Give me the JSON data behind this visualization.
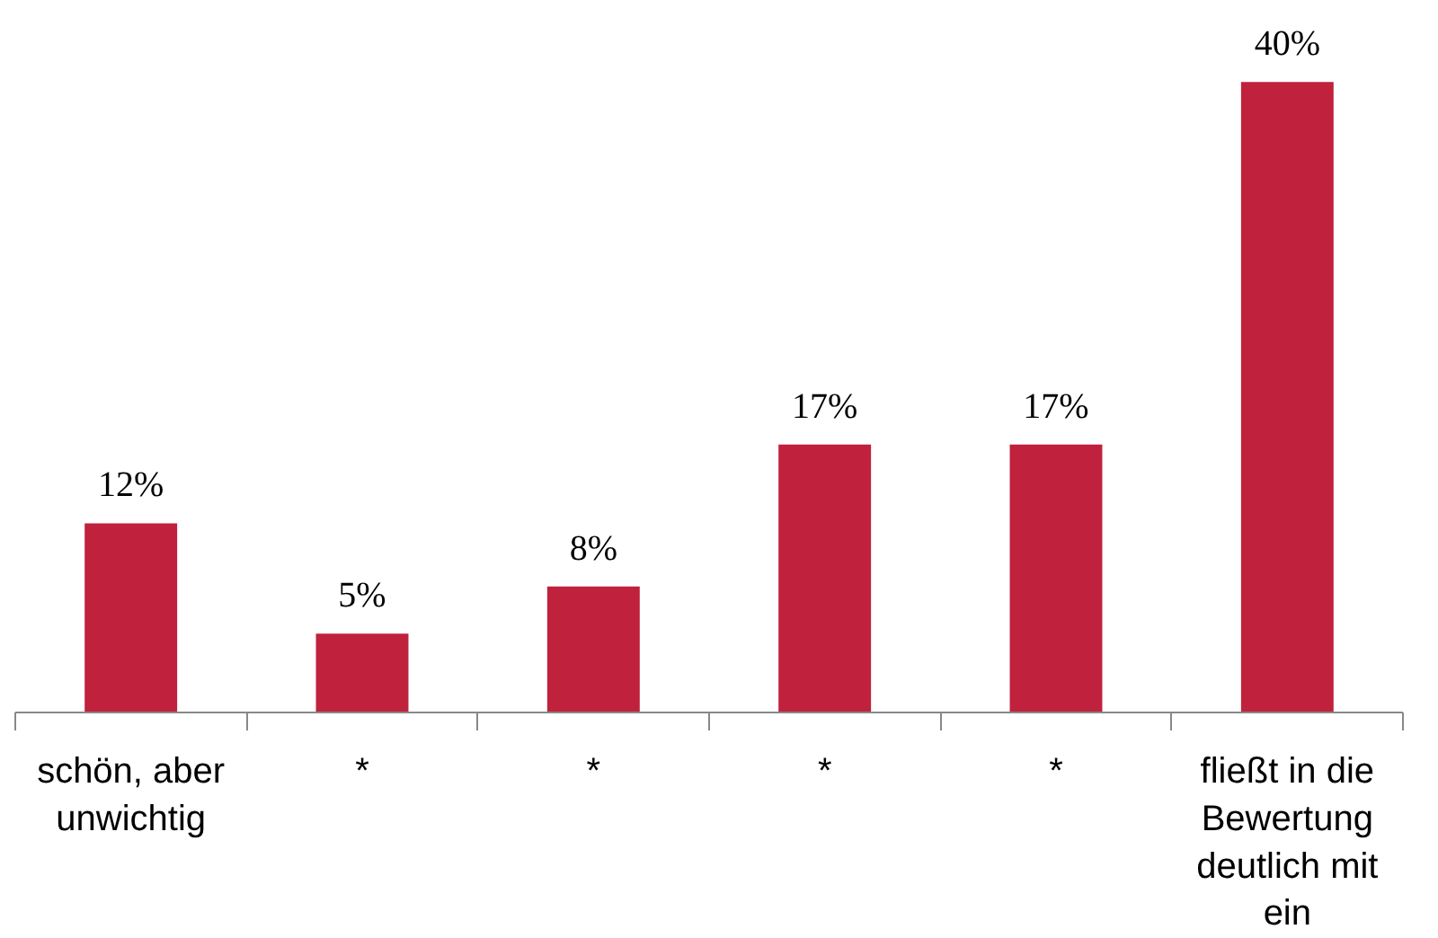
{
  "chart_data": {
    "type": "bar",
    "categories": [
      "schön, aber unwichtig",
      "*",
      "*",
      "*",
      "*",
      "fließt in die Bewertung deutlich mit ein"
    ],
    "values": [
      12,
      5,
      8,
      17,
      17,
      40
    ],
    "value_labels": [
      "12%",
      "5%",
      "8%",
      "17%",
      "17%",
      "40%"
    ],
    "color": "#c0213d"
  }
}
